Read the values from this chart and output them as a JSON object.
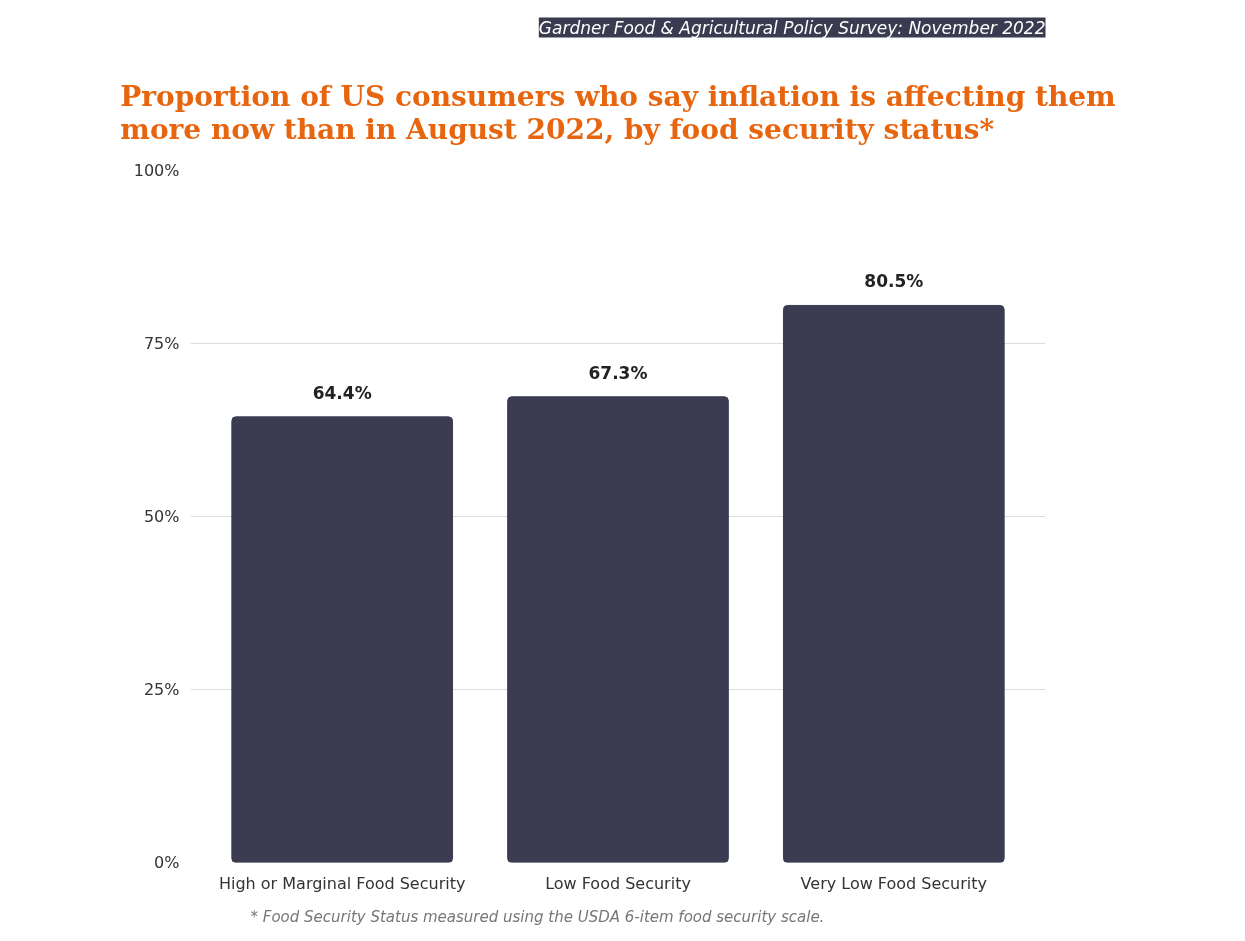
{
  "chart_data": {
    "type": "bar",
    "title": "Proportion of US consumers who say inflation is affecting them more now than in August 2022, by food security status*",
    "subtitle": "Gardner Food & Agricultural Policy Survey: November 2022",
    "categories": [
      "High or Marginal Food Security",
      "Low Food Security",
      "Very Low Food Security"
    ],
    "values": [
      64.4,
      67.3,
      80.5
    ],
    "color": "#3b3b51",
    "value_labels": [
      "64.4%",
      "67.3%",
      "80.5%"
    ],
    "ylim": [
      0,
      100
    ],
    "yticks": [
      {
        "value": 0,
        "label": "0%"
      },
      {
        "value": 25,
        "label": "25%"
      },
      {
        "value": 50,
        "label": "50%"
      },
      {
        "value": 75,
        "label": "75%"
      },
      {
        "value": 100,
        "label": "100%"
      }
    ],
    "grid": "y",
    "annotations": [
      "* Food Security Status measured using the USDA 6-item food security scale."
    ]
  }
}
